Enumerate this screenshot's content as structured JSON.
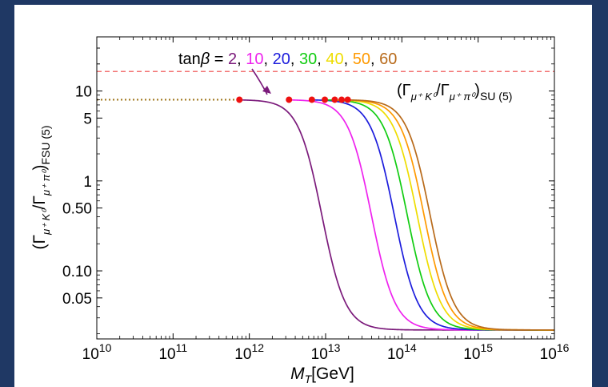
{
  "chart_data": {
    "type": "line",
    "xlabel": "M_T[GeV]",
    "ylabel": "(Γ_{μ⁺ K⁰}/Γ_{μ⁺ π⁰})_FSU (5)",
    "xscale": "log",
    "yscale": "log",
    "xlim": [
      10000000000.0,
      1e+16
    ],
    "ylim": [
      0.0175,
      40
    ],
    "x_ticks": [
      10000000000.0,
      100000000000.0,
      1000000000000.0,
      10000000000000.0,
      100000000000000.0,
      1000000000000000.0,
      1e+16
    ],
    "x_tick_labels": [
      "10",
      "10",
      "10",
      "10",
      "10",
      "10",
      "10"
    ],
    "x_tick_exponents": [
      "10",
      "11",
      "12",
      "13",
      "14",
      "15",
      "16"
    ],
    "y_ticks": [
      0.05,
      0.1,
      0.5,
      1,
      5,
      10
    ],
    "y_tick_labels": [
      "0.05",
      "0.10",
      "0.50",
      "1",
      "5",
      "10"
    ],
    "plateau": 8.0,
    "floor": 0.022,
    "su5_ratio": 16.5,
    "su5_label": "(Γ_{μ⁺ K⁰}/Γ_{μ⁺ π⁰})_SU (5)",
    "legend_prefix": "tanβ =",
    "series": [
      {
        "name": "2",
        "color": "#7b1a7b",
        "midpoint_log10": 12.95,
        "width_dec": 0.155,
        "marker_x_log10": 11.87
      },
      {
        "name": "10",
        "color": "#ee22ee",
        "midpoint_log10": 13.6,
        "width_dec": 0.155,
        "marker_x_log10": 12.52
      },
      {
        "name": "20",
        "color": "#1c1cdc",
        "midpoint_log10": 13.9,
        "width_dec": 0.155,
        "marker_x_log10": 12.82
      },
      {
        "name": "30",
        "color": "#11cc11",
        "midpoint_log10": 14.07,
        "width_dec": 0.155,
        "marker_x_log10": 12.99
      },
      {
        "name": "40",
        "color": "#eedd00",
        "midpoint_log10": 14.2,
        "width_dec": 0.155,
        "marker_x_log10": 13.12
      },
      {
        "name": "50",
        "color": "#ff9900",
        "midpoint_log10": 14.29,
        "width_dec": 0.155,
        "marker_x_log10": 13.21
      },
      {
        "name": "60",
        "color": "#b86a1a",
        "midpoint_log10": 14.37,
        "width_dec": 0.155,
        "marker_x_log10": 13.29
      }
    ],
    "reference_line": {
      "color": "#ee4444",
      "style": "dashed"
    },
    "dotted_line": {
      "color": "#a0781e",
      "style": "dotted"
    },
    "marker_color": "#ee1111",
    "arrow_color": "#7b1a7b"
  }
}
